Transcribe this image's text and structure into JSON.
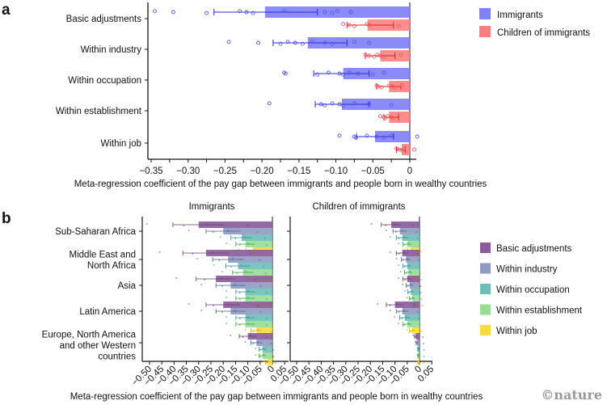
{
  "chart_data": [
    {
      "panel_label": "a",
      "type": "bar",
      "orientation": "horizontal",
      "categories": [
        "Basic adjustments",
        "Within industry",
        "Within occupation",
        "Within establishment",
        "Within job"
      ],
      "series": [
        {
          "name": "Immigrants",
          "color": "#7b7bf7",
          "values": [
            -0.196,
            -0.138,
            -0.09,
            -0.092,
            -0.047
          ],
          "ci": [
            [
              -0.265,
              -0.125
            ],
            [
              -0.185,
              -0.085
            ],
            [
              -0.13,
              -0.055
            ],
            [
              -0.128,
              -0.055
            ],
            [
              -0.072,
              -0.022
            ]
          ],
          "points": [
            [
              -0.345,
              -0.32,
              -0.275,
              -0.23,
              -0.221,
              -0.212,
              -0.17,
              -0.115,
              -0.105,
              -0.098,
              -0.08
            ],
            [
              -0.245,
              -0.205,
              -0.175,
              -0.165,
              -0.155,
              -0.145,
              -0.132,
              -0.115,
              -0.105,
              -0.075,
              -0.055
            ],
            [
              -0.17,
              -0.168,
              -0.125,
              -0.11,
              -0.095,
              -0.09,
              -0.082,
              -0.07,
              -0.05,
              -0.035
            ],
            [
              -0.19,
              -0.12,
              -0.115,
              -0.105,
              -0.095,
              -0.09,
              -0.075,
              -0.055,
              -0.025
            ],
            [
              -0.095,
              -0.075,
              -0.073,
              -0.058,
              -0.045,
              -0.035,
              -0.025,
              0.01
            ]
          ]
        },
        {
          "name": "Children of immigrants",
          "color": "#f87c7c",
          "values": [
            -0.057,
            -0.04,
            -0.028,
            -0.028,
            -0.011
          ],
          "ci": [
            [
              -0.085,
              -0.022
            ],
            [
              -0.06,
              -0.02
            ],
            [
              -0.045,
              -0.012
            ],
            [
              -0.035,
              -0.015
            ],
            [
              -0.018,
              -0.006
            ]
          ],
          "points": [
            [
              -0.09,
              -0.082,
              -0.075,
              -0.058,
              -0.055,
              -0.015
            ],
            [
              -0.06,
              -0.055,
              -0.048,
              -0.044,
              -0.04,
              -0.035,
              -0.012
            ],
            [
              -0.045,
              -0.043,
              -0.038,
              -0.028,
              -0.024,
              -0.02,
              -0.01
            ],
            [
              -0.04,
              -0.035,
              -0.033,
              -0.03,
              -0.025,
              -0.022
            ],
            [
              -0.018,
              -0.014,
              -0.01,
              -0.008,
              0.006
            ]
          ]
        }
      ],
      "xlabel": "Meta-regression coefficient of the pay gap between immigrants and people born in wealthy countries",
      "ylabel": "",
      "xlim": [
        -0.355,
        0.015
      ],
      "xticks": [
        -0.35,
        -0.3,
        -0.25,
        -0.2,
        -0.15,
        -0.1,
        -0.05,
        0
      ],
      "xtick_labels": [
        "−0.35",
        "−0.30",
        "−0.25",
        "−0.20",
        "−0.15",
        "−0.10",
        "−0.05",
        "0"
      ],
      "grid": false,
      "legend": "top-right"
    },
    {
      "panel_label": "b",
      "type": "bar",
      "orientation": "horizontal",
      "facets": [
        "Immigrants",
        "Children of immigrants"
      ],
      "categories": [
        "Sub-Saharan Africa",
        "Middle East and North Africa",
        "Asia",
        "Latin America",
        "Europe, North America and other Western countries"
      ],
      "category_lines": [
        [
          "Sub-Saharan Africa"
        ],
        [
          "Middle East and",
          "North Africa"
        ],
        [
          "Asia"
        ],
        [
          "Latin America"
        ],
        [
          "Europe, North America",
          "and other Western",
          "countries"
        ]
      ],
      "series_names": [
        "Basic adjustments",
        "Within industry",
        "Within occupation",
        "Within establishment",
        "Within job"
      ],
      "series_colors": [
        "#8a5a9a",
        "#8e9ac0",
        "#6fbdb8",
        "#96dd96",
        "#fbdc3c"
      ],
      "values": {
        "Immigrants": [
          [
            -0.3,
            -0.2,
            -0.125,
            -0.11,
            -0.08
          ],
          [
            -0.27,
            -0.18,
            -0.14,
            -0.12,
            -0.075
          ],
          [
            -0.23,
            -0.17,
            -0.11,
            -0.11,
            -0.06
          ],
          [
            -0.2,
            -0.17,
            -0.11,
            -0.11,
            -0.065
          ],
          [
            -0.1,
            -0.065,
            -0.04,
            -0.04,
            -0.02
          ]
        ],
        "Children of immigrants": [
          [
            -0.115,
            -0.08,
            -0.07,
            -0.05,
            -0.035
          ],
          [
            -0.07,
            -0.055,
            -0.05,
            -0.045,
            -0.03
          ],
          [
            -0.05,
            -0.04,
            -0.035,
            -0.03,
            -0.02
          ],
          [
            -0.1,
            -0.07,
            -0.06,
            -0.05,
            -0.03
          ],
          [
            -0.015,
            -0.01,
            -0.005,
            -0.005,
            -0.005
          ]
        ]
      },
      "xlabel": "Meta-regression coefficient of the pay gap between immigrants and people born in wealthy countries",
      "xlim": [
        -0.52,
        0.07
      ],
      "xticks": [
        -0.5,
        -0.45,
        -0.4,
        -0.35,
        -0.3,
        -0.25,
        -0.2,
        -0.15,
        -0.1,
        -0.05,
        0,
        0.05
      ],
      "xtick_labels": [
        "−0.50",
        "−0.45",
        "−0.40",
        "−0.35",
        "−0.30",
        "−0.25",
        "−0.20",
        "−0.15",
        "−0.10",
        "−0.05",
        "0",
        "0.05"
      ],
      "grid": false,
      "legend": "right"
    }
  ],
  "credit": "©nature"
}
